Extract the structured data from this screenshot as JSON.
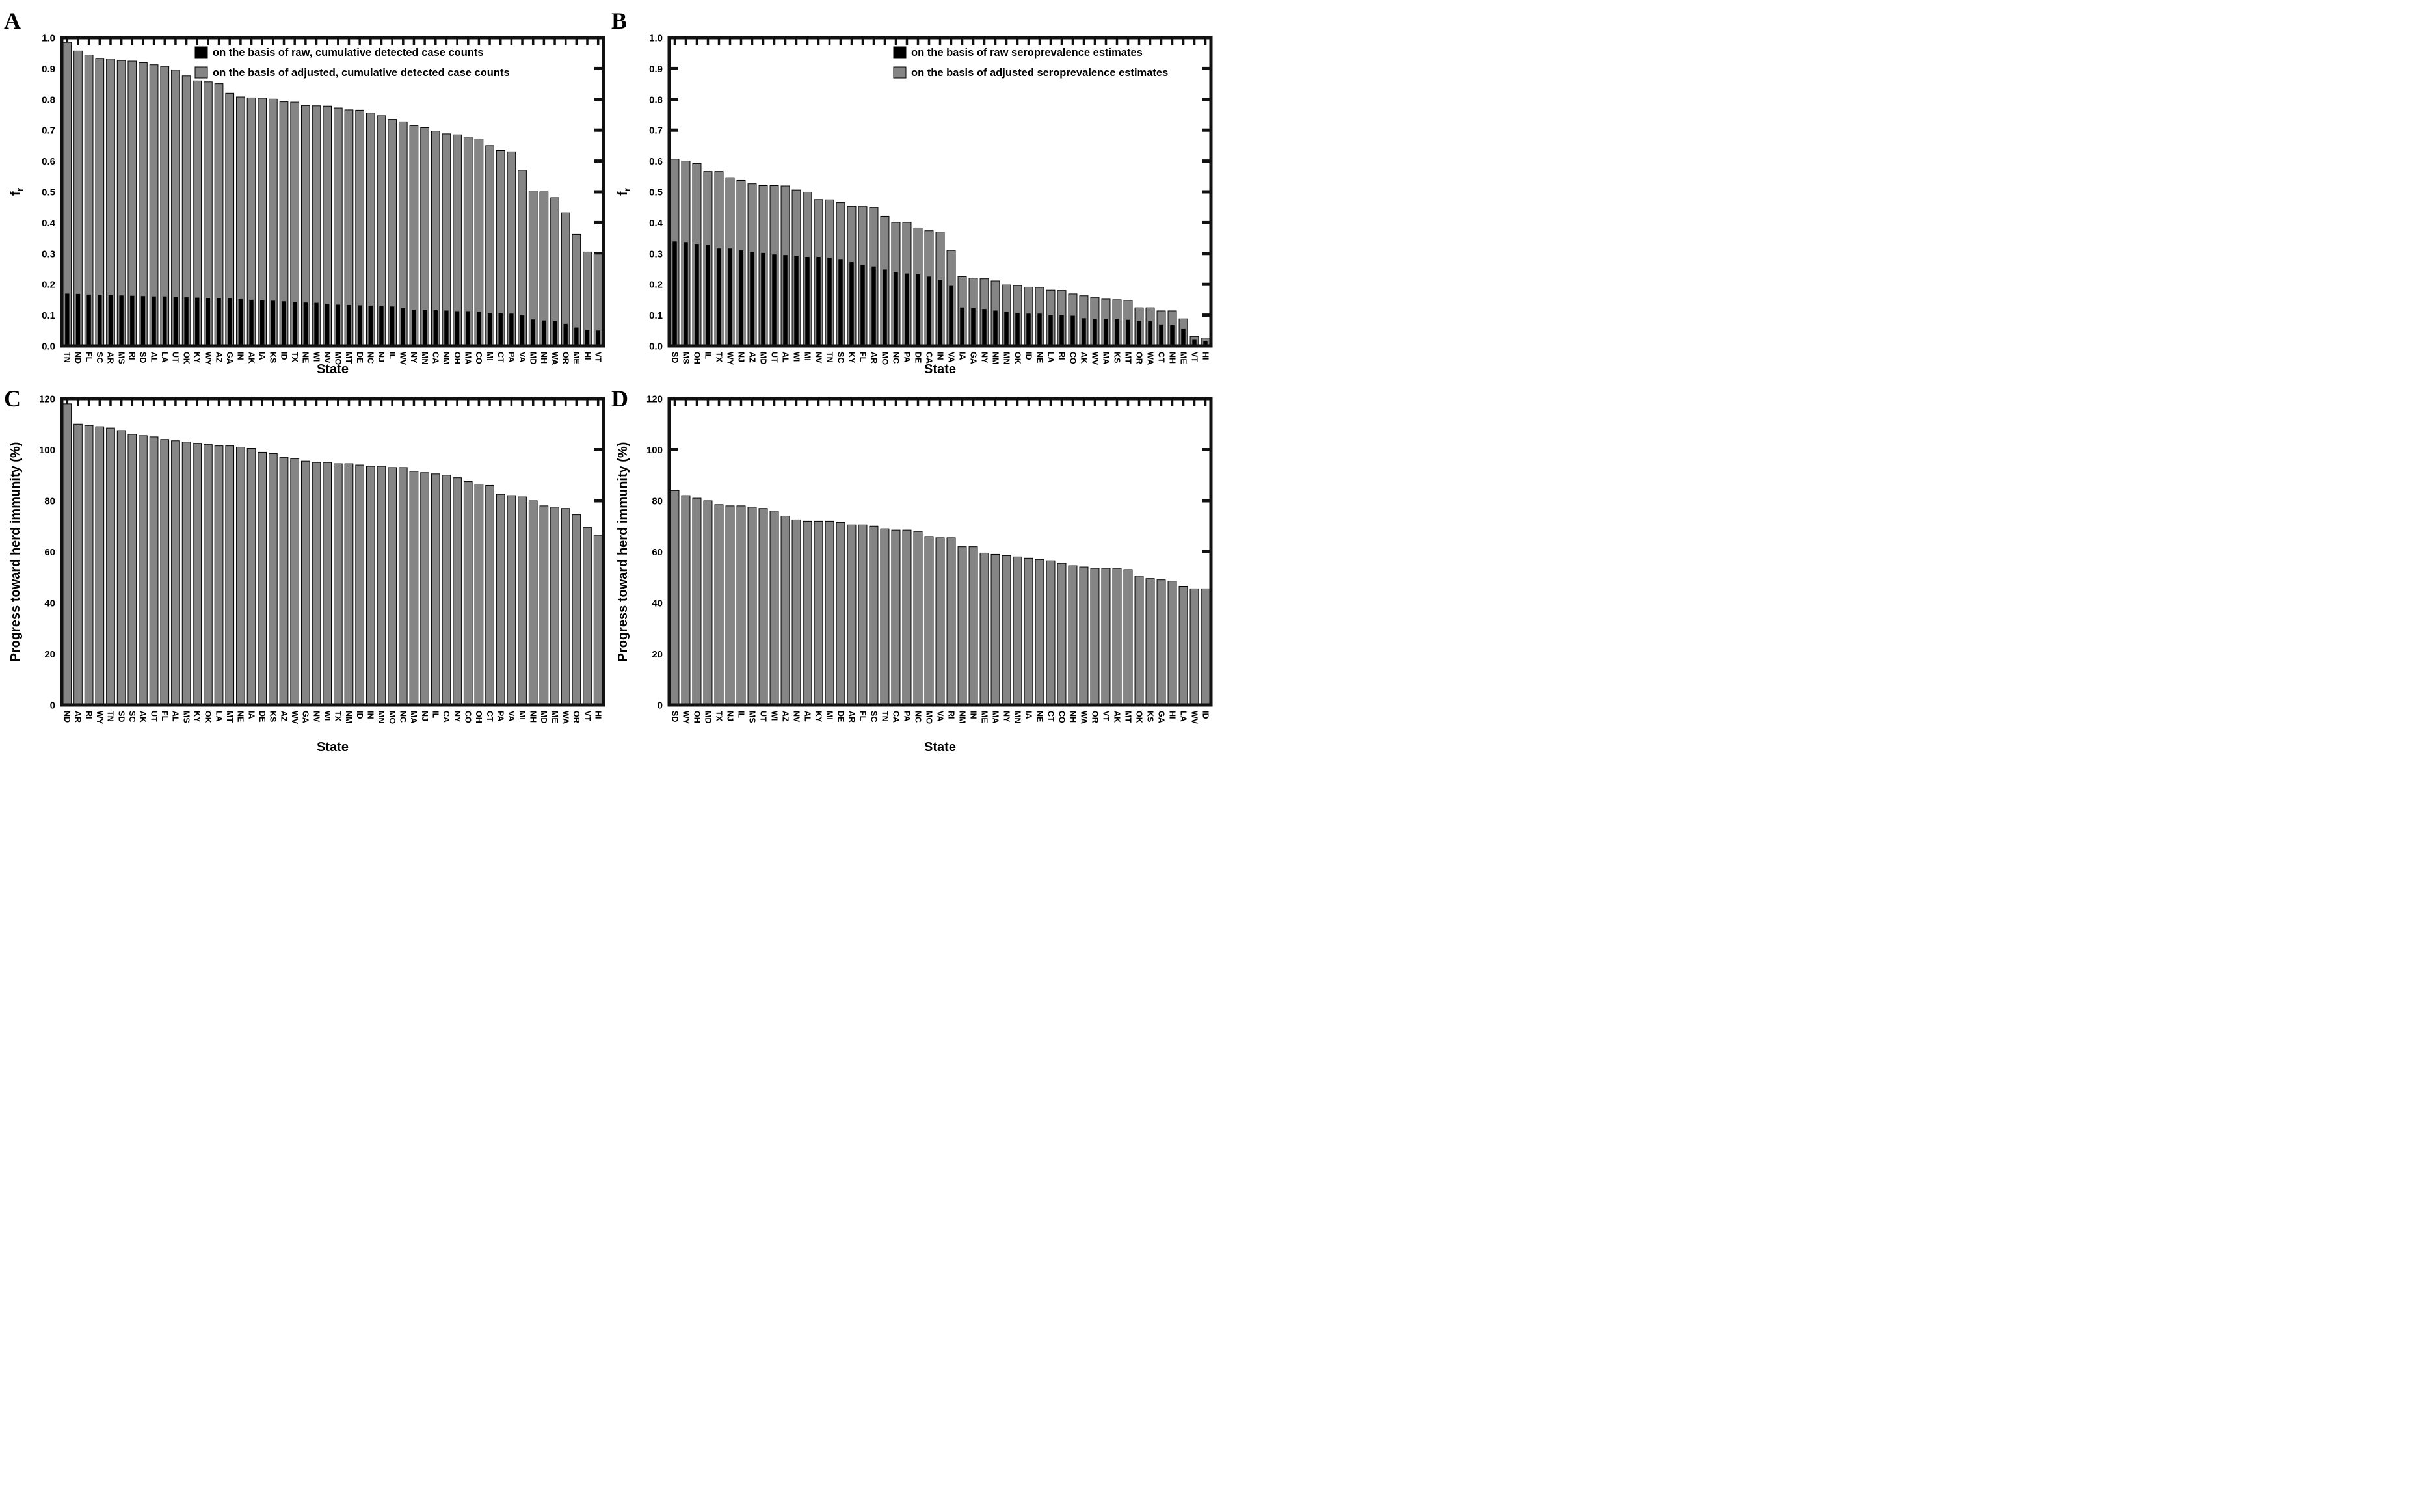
{
  "figure": {
    "background": "#ffffff",
    "bar_fill_gray": "#858585",
    "bar_fill_black": "#000000",
    "axis_color": "#111111"
  },
  "chart_data": [
    {
      "panel_letter": "A",
      "type": "bar",
      "title": "",
      "xlabel": "State",
      "ylabel": "f_r",
      "ylabel_base": "f",
      "ylabel_sub": "r",
      "ylim": [
        0,
        1.0
      ],
      "grid": false,
      "legend_position": "upper right inside",
      "legend_x": 300,
      "yticks": [
        0,
        0.1,
        0.2,
        0.3,
        0.4,
        0.5,
        0.6,
        0.7,
        0.8,
        0.9,
        1.0
      ],
      "ytick_labels": [
        "0.0",
        "0.1",
        "0.2",
        "0.3",
        "0.4",
        "0.5",
        "0.6",
        "0.7",
        "0.8",
        "0.9",
        "1.0"
      ],
      "categories": [
        "TN",
        "ND",
        "FL",
        "SC",
        "AR",
        "MS",
        "RI",
        "SD",
        "AL",
        "LA",
        "UT",
        "OK",
        "KY",
        "WY",
        "AZ",
        "GA",
        "IN",
        "AK",
        "IA",
        "KS",
        "ID",
        "TX",
        "NE",
        "WI",
        "NV",
        "MO",
        "MT",
        "DE",
        "NC",
        "NJ",
        "IL",
        "WV",
        "NY",
        "MN",
        "CA",
        "NM",
        "OH",
        "MA",
        "CO",
        "MI",
        "CT",
        "PA",
        "VA",
        "MD",
        "NH",
        "WA",
        "OR",
        "ME",
        "HI",
        "VT"
      ],
      "series": [
        {
          "name": "on the basis of raw, cumulative detected case counts",
          "color": "#000000",
          "layer": "front",
          "values": [
            0.17,
            0.169,
            0.167,
            0.166,
            0.165,
            0.164,
            0.163,
            0.162,
            0.161,
            0.161,
            0.16,
            0.158,
            0.157,
            0.156,
            0.156,
            0.155,
            0.152,
            0.15,
            0.148,
            0.147,
            0.145,
            0.143,
            0.141,
            0.14,
            0.137,
            0.134,
            0.133,
            0.132,
            0.131,
            0.129,
            0.128,
            0.123,
            0.118,
            0.117,
            0.116,
            0.115,
            0.113,
            0.113,
            0.111,
            0.107,
            0.106,
            0.105,
            0.099,
            0.086,
            0.083,
            0.081,
            0.072,
            0.06,
            0.052,
            0.05
          ]
        },
        {
          "name": "on the basis of adjusted, cumulative detected case counts",
          "color": "#858585",
          "layer": "back",
          "values": [
            0.985,
            0.957,
            0.944,
            0.933,
            0.931,
            0.926,
            0.924,
            0.919,
            0.912,
            0.907,
            0.895,
            0.876,
            0.86,
            0.857,
            0.851,
            0.82,
            0.808,
            0.805,
            0.804,
            0.801,
            0.792,
            0.791,
            0.78,
            0.779,
            0.778,
            0.772,
            0.766,
            0.765,
            0.756,
            0.747,
            0.735,
            0.727,
            0.716,
            0.708,
            0.697,
            0.688,
            0.685,
            0.678,
            0.672,
            0.65,
            0.634,
            0.63,
            0.57,
            0.503,
            0.5,
            0.481,
            0.432,
            0.362,
            0.305,
            0.298
          ]
        }
      ]
    },
    {
      "panel_letter": "B",
      "type": "bar",
      "title": "",
      "xlabel": "State",
      "ylabel": "f_r",
      "ylabel_base": "f",
      "ylabel_sub": "r",
      "ylim": [
        0,
        1.0
      ],
      "grid": false,
      "legend_position": "upper right inside",
      "legend_x": 440,
      "yticks": [
        0,
        0.1,
        0.2,
        0.3,
        0.4,
        0.5,
        0.6,
        0.7,
        0.8,
        0.9,
        1.0
      ],
      "ytick_labels": [
        "0.0",
        "0.1",
        "0.2",
        "0.3",
        "0.4",
        "0.5",
        "0.6",
        "0.7",
        "0.8",
        "0.9",
        "1.0"
      ],
      "categories": [
        "SD",
        "MS",
        "OH",
        "IL",
        "TX",
        "WY",
        "NJ",
        "AZ",
        "MD",
        "UT",
        "AL",
        "WI",
        "MI",
        "NV",
        "TN",
        "SC",
        "KY",
        "FL",
        "AR",
        "MO",
        "NC",
        "PA",
        "DE",
        "CA",
        "IN",
        "VA",
        "IA",
        "GA",
        "NY",
        "NM",
        "MN",
        "OK",
        "ID",
        "NE",
        "LA",
        "RI",
        "CO",
        "AK",
        "WV",
        "MA",
        "KS",
        "MT",
        "OR",
        "WA",
        "CT",
        "NH",
        "ME",
        "VT",
        "HI"
      ],
      "series": [
        {
          "name": "on the basis of raw seroprevalence estimates",
          "color": "#000000",
          "layer": "front",
          "values": [
            0.339,
            0.337,
            0.331,
            0.329,
            0.316,
            0.316,
            0.31,
            0.305,
            0.302,
            0.297,
            0.295,
            0.293,
            0.289,
            0.289,
            0.287,
            0.28,
            0.272,
            0.262,
            0.258,
            0.248,
            0.24,
            0.235,
            0.232,
            0.225,
            0.215,
            0.195,
            0.125,
            0.123,
            0.12,
            0.115,
            0.11,
            0.107,
            0.105,
            0.105,
            0.1,
            0.1,
            0.098,
            0.09,
            0.088,
            0.088,
            0.087,
            0.085,
            0.082,
            0.08,
            0.07,
            0.068,
            0.055,
            0.02,
            0.015
          ]
        },
        {
          "name": "on the basis of adjusted seroprevalence estimates",
          "color": "#858585",
          "layer": "back",
          "values": [
            0.606,
            0.6,
            0.592,
            0.566,
            0.566,
            0.546,
            0.537,
            0.526,
            0.52,
            0.52,
            0.519,
            0.506,
            0.499,
            0.475,
            0.474,
            0.465,
            0.453,
            0.452,
            0.449,
            0.421,
            0.401,
            0.401,
            0.383,
            0.374,
            0.37,
            0.31,
            0.225,
            0.22,
            0.218,
            0.211,
            0.198,
            0.196,
            0.191,
            0.19,
            0.181,
            0.18,
            0.169,
            0.163,
            0.158,
            0.152,
            0.15,
            0.148,
            0.124,
            0.124,
            0.114,
            0.114,
            0.088,
            0.031,
            0.026
          ]
        }
      ]
    },
    {
      "panel_letter": "C",
      "type": "bar",
      "title": "",
      "xlabel": "State",
      "ylabel": "Progress toward herd immunity (%)",
      "ylim": [
        0,
        120
      ],
      "grid": false,
      "yticks": [
        0,
        20,
        40,
        60,
        80,
        100,
        120
      ],
      "ytick_labels": [
        "0",
        "20",
        "40",
        "60",
        "80",
        "100",
        "120"
      ],
      "categories": [
        "ND",
        "AR",
        "RI",
        "WY",
        "TN",
        "SD",
        "SC",
        "AK",
        "UT",
        "FL",
        "AL",
        "MS",
        "KY",
        "OK",
        "LA",
        "MT",
        "NE",
        "IA",
        "DE",
        "KS",
        "AZ",
        "WV",
        "GA",
        "NV",
        "WI",
        "TX",
        "NM",
        "ID",
        "IN",
        "MN",
        "MO",
        "NC",
        "MA",
        "NJ",
        "IL",
        "CA",
        "NY",
        "CO",
        "OH",
        "CT",
        "PA",
        "VA",
        "MI",
        "NH",
        "MD",
        "ME",
        "WA",
        "OR",
        "VT",
        "HI"
      ],
      "series": [
        {
          "name": "Progress toward herd immunity (%)",
          "color": "#858585",
          "layer": "back",
          "values": [
            118,
            110,
            109.5,
            109,
            108.5,
            107.5,
            106,
            105.5,
            105,
            104,
            103.5,
            103,
            102.5,
            102,
            101.5,
            101.5,
            101,
            100.5,
            99,
            98.5,
            97,
            96.5,
            95.5,
            95,
            95,
            94.5,
            94.5,
            94,
            93.5,
            93.5,
            93,
            93,
            91.5,
            91,
            90.5,
            90,
            89,
            87.5,
            86.5,
            86,
            82.5,
            82,
            81.5,
            80,
            78,
            77.5,
            77,
            74.5,
            69.5,
            66.5
          ]
        }
      ]
    },
    {
      "panel_letter": "D",
      "type": "bar",
      "title": "",
      "xlabel": "State",
      "ylabel": "Progress toward herd immunity (%)",
      "ylim": [
        0,
        120
      ],
      "grid": false,
      "yticks": [
        0,
        20,
        40,
        60,
        80,
        100,
        120
      ],
      "ytick_labels": [
        "0",
        "20",
        "40",
        "60",
        "80",
        "100",
        "120"
      ],
      "categories": [
        "SD",
        "WY",
        "OH",
        "MD",
        "TX",
        "NJ",
        "IL",
        "MS",
        "UT",
        "WI",
        "AZ",
        "NV",
        "AL",
        "KY",
        "MI",
        "DE",
        "AR",
        "FL",
        "SC",
        "TN",
        "CA",
        "PA",
        "NC",
        "MO",
        "VA",
        "RI",
        "NM",
        "IN",
        "ME",
        "MA",
        "NY",
        "MN",
        "IA",
        "NE",
        "CT",
        "CO",
        "NH",
        "WA",
        "OR",
        "VT",
        "AK",
        "MT",
        "OK",
        "KS",
        "GA",
        "HI",
        "LA",
        "WV",
        "ID"
      ],
      "series": [
        {
          "name": "Progress toward herd immunity (%)",
          "color": "#858585",
          "layer": "back",
          "values": [
            84,
            82,
            81,
            80,
            78.5,
            78,
            78,
            77.5,
            77,
            76,
            74,
            72.5,
            72,
            72,
            72,
            71.5,
            70.5,
            70.5,
            70,
            69,
            68.5,
            68.5,
            68,
            66,
            65.5,
            65.5,
            62,
            62,
            59.5,
            59,
            58.5,
            58,
            57.5,
            57,
            56.5,
            55.5,
            54.5,
            54,
            53.5,
            53.5,
            53.5,
            53,
            50.5,
            49.5,
            49,
            48.5,
            46.5,
            45.5,
            45.5
          ]
        }
      ]
    }
  ]
}
